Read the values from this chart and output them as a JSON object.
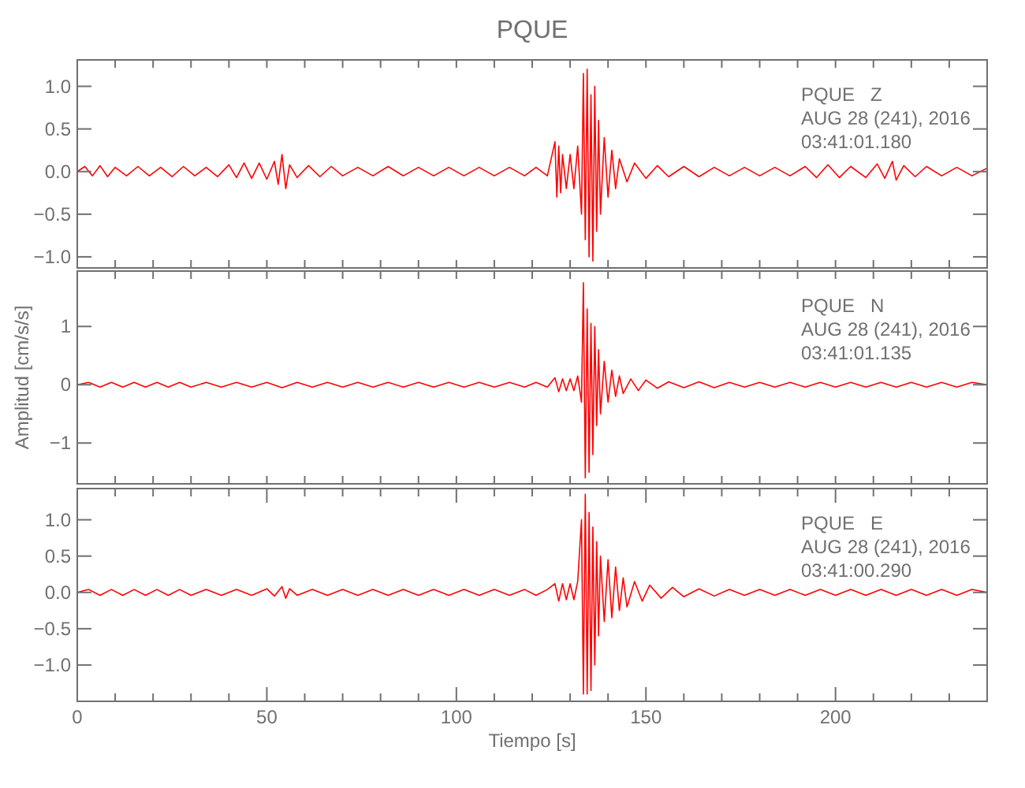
{
  "chart_data": [
    {
      "type": "line",
      "title": "PQUE",
      "annotations": [
        "PQUE   Z",
        "AUG 28 (241), 2016",
        "03:41:01.180"
      ],
      "xlim": [
        0,
        240
      ],
      "xticks": [
        {
          "value": 0,
          "label": null
        },
        {
          "value": 10,
          "label": null
        },
        {
          "value": 20,
          "label": null
        },
        {
          "value": 30,
          "label": null
        },
        {
          "value": 40,
          "label": null
        },
        {
          "value": 50,
          "label": null
        },
        {
          "value": 60,
          "label": null
        },
        {
          "value": 70,
          "label": null
        },
        {
          "value": 80,
          "label": null
        },
        {
          "value": 90,
          "label": null
        },
        {
          "value": 100,
          "label": null
        },
        {
          "value": 110,
          "label": null
        },
        {
          "value": 120,
          "label": null
        },
        {
          "value": 130,
          "label": null
        },
        {
          "value": 140,
          "label": null
        },
        {
          "value": 150,
          "label": null
        },
        {
          "value": 160,
          "label": null
        },
        {
          "value": 170,
          "label": null
        },
        {
          "value": 180,
          "label": null
        },
        {
          "value": 190,
          "label": null
        },
        {
          "value": 200,
          "label": null
        },
        {
          "value": 210,
          "label": null
        },
        {
          "value": 220,
          "label": null
        },
        {
          "value": 230,
          "label": null
        }
      ],
      "ylim": [
        -1.13,
        1.31
      ],
      "yticks": [
        {
          "value": -1,
          "label": "−1.0"
        },
        {
          "value": -0.5,
          "label": "−0.5"
        },
        {
          "value": 0,
          "label": "0.0"
        },
        {
          "value": 0.5,
          "label": "0.5"
        },
        {
          "value": 1,
          "label": "1.0"
        }
      ],
      "tick_labels": "y",
      "series": [
        {
          "color": "#ff0000",
          "x": [
            0,
            2,
            4,
            6,
            8,
            10,
            13,
            16,
            19,
            22,
            25,
            28,
            31,
            34,
            37,
            40,
            42,
            44,
            46,
            48,
            50,
            52,
            53,
            54,
            55,
            56,
            58,
            61,
            64,
            67,
            70,
            74,
            78,
            82,
            86,
            90,
            94,
            98,
            102,
            106,
            110,
            114,
            118,
            121,
            124,
            126,
            126.5,
            127,
            127.5,
            128,
            129,
            130,
            131,
            132,
            133,
            133.5,
            134,
            134.5,
            135,
            135.5,
            136,
            136.5,
            137,
            137.5,
            138,
            139,
            140,
            141,
            142,
            143,
            145,
            147,
            150,
            153,
            156,
            160,
            164,
            168,
            172,
            176,
            180,
            184,
            188,
            192,
            195,
            198,
            201,
            204,
            208,
            211,
            213,
            215,
            216,
            218,
            221,
            224,
            228,
            232,
            236,
            240
          ],
          "values": [
            0,
            0.06,
            -0.05,
            0.07,
            -0.06,
            0.05,
            -0.05,
            0.06,
            -0.05,
            0.05,
            -0.06,
            0.06,
            -0.05,
            0.05,
            -0.06,
            0.08,
            -0.07,
            0.1,
            -0.08,
            0.1,
            -0.09,
            0.12,
            -0.15,
            0.2,
            -0.2,
            0.08,
            -0.07,
            0.07,
            -0.06,
            0.06,
            -0.05,
            0.05,
            -0.05,
            0.06,
            -0.05,
            0.05,
            -0.05,
            0.05,
            -0.05,
            0.05,
            -0.05,
            0.05,
            -0.05,
            0.05,
            -0.05,
            0.35,
            -0.3,
            0.3,
            -0.25,
            0.2,
            -0.2,
            0.2,
            -0.2,
            0.3,
            -0.5,
            1.15,
            -0.8,
            1.2,
            -1.0,
            0.9,
            -1.05,
            1.0,
            -0.7,
            0.6,
            -0.5,
            0.4,
            -0.3,
            0.25,
            -0.2,
            0.15,
            -0.12,
            0.1,
            -0.08,
            0.07,
            -0.06,
            0.06,
            -0.06,
            0.05,
            -0.05,
            0.05,
            -0.05,
            0.05,
            -0.05,
            0.06,
            -0.07,
            0.08,
            -0.07,
            0.06,
            -0.07,
            0.09,
            -0.08,
            0.12,
            -0.1,
            0.07,
            -0.06,
            0.06,
            -0.05,
            0.05,
            -0.05,
            0.04
          ]
        }
      ]
    },
    {
      "type": "line",
      "ylabel": "Amplitud [cm/s/s]",
      "annotations": [
        "PQUE   N",
        "AUG 28 (241), 2016",
        "03:41:01.135"
      ],
      "xlim": [
        0,
        240
      ],
      "xticks": [
        {
          "value": 0,
          "label": null
        },
        {
          "value": 10,
          "label": null
        },
        {
          "value": 20,
          "label": null
        },
        {
          "value": 30,
          "label": null
        },
        {
          "value": 40,
          "label": null
        },
        {
          "value": 50,
          "label": null
        },
        {
          "value": 60,
          "label": null
        },
        {
          "value": 70,
          "label": null
        },
        {
          "value": 80,
          "label": null
        },
        {
          "value": 90,
          "label": null
        },
        {
          "value": 100,
          "label": null
        },
        {
          "value": 110,
          "label": null
        },
        {
          "value": 120,
          "label": null
        },
        {
          "value": 130,
          "label": null
        },
        {
          "value": 140,
          "label": null
        },
        {
          "value": 150,
          "label": null
        },
        {
          "value": 160,
          "label": null
        },
        {
          "value": 170,
          "label": null
        },
        {
          "value": 180,
          "label": null
        },
        {
          "value": 190,
          "label": null
        },
        {
          "value": 200,
          "label": null
        },
        {
          "value": 210,
          "label": null
        },
        {
          "value": 220,
          "label": null
        },
        {
          "value": 230,
          "label": null
        }
      ],
      "ylim": [
        -1.7,
        1.95
      ],
      "yticks": [
        {
          "value": -1,
          "label": "−1"
        },
        0,
        1
      ],
      "tick_labels": "y",
      "series": [
        {
          "color": "#ff0000",
          "x": [
            0,
            3,
            6,
            9,
            12,
            15,
            18,
            21,
            24,
            27,
            30,
            34,
            38,
            42,
            46,
            50,
            54,
            58,
            62,
            66,
            70,
            74,
            78,
            82,
            86,
            90,
            94,
            98,
            102,
            106,
            110,
            114,
            118,
            121,
            124,
            126,
            127,
            128,
            129,
            130,
            131,
            132,
            133,
            133.5,
            134,
            134.5,
            135,
            135.5,
            136,
            136.5,
            137,
            137.5,
            138,
            139,
            140,
            141,
            142,
            143,
            144,
            146,
            148,
            150,
            153,
            156,
            160,
            164,
            168,
            172,
            176,
            180,
            184,
            188,
            192,
            196,
            200,
            204,
            208,
            212,
            216,
            220,
            224,
            228,
            232,
            236,
            240
          ],
          "values": [
            0,
            0.04,
            -0.04,
            0.04,
            -0.04,
            0.04,
            -0.04,
            0.04,
            -0.04,
            0.04,
            -0.04,
            0.04,
            -0.04,
            0.04,
            -0.04,
            0.04,
            -0.05,
            0.04,
            -0.04,
            0.04,
            -0.04,
            0.04,
            -0.04,
            0.04,
            -0.04,
            0.04,
            -0.04,
            0.04,
            -0.04,
            0.04,
            -0.04,
            0.04,
            -0.04,
            0.04,
            -0.04,
            0.12,
            -0.12,
            0.1,
            -0.1,
            0.1,
            -0.1,
            0.15,
            -0.3,
            1.75,
            -1.6,
            1.3,
            -1.5,
            1.05,
            -1.2,
            1.0,
            -0.7,
            0.6,
            -0.5,
            0.4,
            -0.3,
            0.25,
            -0.2,
            0.15,
            -0.15,
            0.1,
            -0.1,
            0.08,
            -0.06,
            0.05,
            -0.05,
            0.05,
            -0.05,
            0.04,
            -0.04,
            0.04,
            -0.04,
            0.04,
            -0.04,
            0.04,
            -0.04,
            0.04,
            -0.04,
            0.04,
            -0.04,
            0.04,
            -0.04,
            0.04,
            -0.04,
            0.04,
            0
          ]
        }
      ]
    },
    {
      "type": "line",
      "xlabel": "Tiempo [s]",
      "annotations": [
        "PQUE   E",
        "AUG 28 (241), 2016",
        "03:41:00.290"
      ],
      "xlim": [
        0,
        240
      ],
      "xticks": [
        0,
        {
          "value": 10,
          "label": null
        },
        {
          "value": 20,
          "label": null
        },
        {
          "value": 30,
          "label": null
        },
        {
          "value": 40,
          "label": null
        },
        50,
        {
          "value": 60,
          "label": null
        },
        {
          "value": 70,
          "label": null
        },
        {
          "value": 80,
          "label": null
        },
        {
          "value": 90,
          "label": null
        },
        100,
        {
          "value": 110,
          "label": null
        },
        {
          "value": 120,
          "label": null
        },
        {
          "value": 130,
          "label": null
        },
        {
          "value": 140,
          "label": null
        },
        150,
        {
          "value": 160,
          "label": null
        },
        {
          "value": 170,
          "label": null
        },
        {
          "value": 180,
          "label": null
        },
        {
          "value": 190,
          "label": null
        },
        200,
        {
          "value": 210,
          "label": null
        },
        {
          "value": 220,
          "label": null
        },
        {
          "value": 230,
          "label": null
        }
      ],
      "ylim": [
        -1.5,
        1.43
      ],
      "yticks": [
        {
          "value": -1,
          "label": "−1.0"
        },
        {
          "value": -0.5,
          "label": "−0.5"
        },
        {
          "value": 0,
          "label": "0.0"
        },
        {
          "value": 0.5,
          "label": "0.5"
        },
        {
          "value": 1,
          "label": "1.0"
        }
      ],
      "series": [
        {
          "color": "#ff0000",
          "x": [
            0,
            3,
            6,
            9,
            12,
            15,
            18,
            21,
            24,
            27,
            30,
            34,
            38,
            42,
            46,
            50,
            52,
            54,
            55,
            56,
            58,
            62,
            66,
            70,
            74,
            78,
            82,
            86,
            90,
            94,
            98,
            102,
            106,
            110,
            114,
            118,
            121,
            124,
            126,
            127,
            128,
            129,
            130,
            131,
            132,
            133,
            133.5,
            134,
            134.5,
            135,
            135.5,
            136,
            136.5,
            137,
            137.5,
            138,
            139,
            140,
            141,
            142,
            143,
            144,
            145,
            147,
            149,
            151,
            154,
            157,
            160,
            164,
            168,
            172,
            176,
            180,
            184,
            188,
            192,
            196,
            200,
            204,
            208,
            212,
            216,
            220,
            224,
            228,
            232,
            236,
            240
          ],
          "values": [
            0,
            0.04,
            -0.04,
            0.04,
            -0.04,
            0.04,
            -0.04,
            0.04,
            -0.04,
            0.04,
            -0.04,
            0.04,
            -0.04,
            0.04,
            -0.04,
            0.05,
            -0.05,
            0.08,
            -0.08,
            0.05,
            -0.04,
            0.04,
            -0.04,
            0.04,
            -0.04,
            0.04,
            -0.04,
            0.04,
            -0.04,
            0.04,
            -0.04,
            0.04,
            -0.04,
            0.04,
            -0.04,
            0.04,
            -0.04,
            0.04,
            0.12,
            -0.12,
            0.12,
            -0.1,
            0.12,
            -0.1,
            0.15,
            1.0,
            -1.4,
            1.35,
            -1.4,
            1.1,
            -1.35,
            0.9,
            -1.0,
            0.7,
            -0.6,
            0.5,
            -0.4,
            0.45,
            -0.35,
            0.35,
            -0.25,
            0.2,
            -0.2,
            0.15,
            -0.12,
            0.1,
            -0.08,
            0.07,
            -0.06,
            0.05,
            -0.05,
            0.04,
            -0.04,
            0.04,
            -0.04,
            0.04,
            -0.04,
            0.04,
            -0.04,
            0.04,
            -0.04,
            0.04,
            -0.04,
            0.04,
            -0.04,
            0.04,
            -0.04,
            0.04,
            0
          ]
        }
      ]
    }
  ]
}
